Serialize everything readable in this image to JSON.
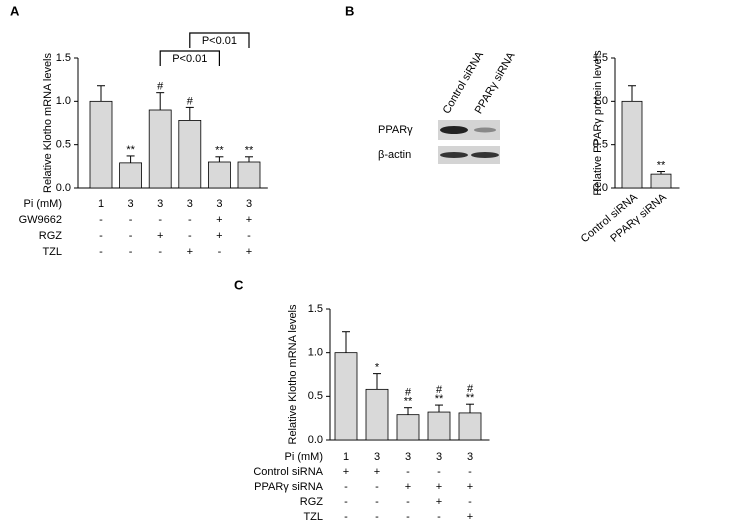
{
  "chart_data": [
    {
      "type": "bar",
      "panel": "A",
      "ylabel": "Relative Klotho mRNA levels",
      "values": [
        1.0,
        0.29,
        0.9,
        0.78,
        0.3,
        0.3
      ],
      "errors": [
        0.18,
        0.08,
        0.2,
        0.15,
        0.06,
        0.06
      ],
      "markers": [
        null,
        [
          "**"
        ],
        [
          "#"
        ],
        [
          "#"
        ],
        [
          "**"
        ],
        [
          "**"
        ]
      ],
      "color": "#d9d9d9",
      "ylim": [
        0,
        1.5
      ],
      "yticks": [
        {
          "value": 0,
          "label": "0.0"
        },
        0.5,
        {
          "value": 1,
          "label": "1.0"
        },
        1.5
      ],
      "condition_rows": [
        {
          "label": "Pi (mM)",
          "values": [
            "1",
            "3",
            "3",
            "3",
            "3",
            "3"
          ]
        },
        {
          "label": "GW9662",
          "values": [
            "-",
            "-",
            "-",
            "-",
            "+",
            "+"
          ]
        },
        {
          "label": "RGZ",
          "values": [
            "-",
            "-",
            "+",
            "-",
            "+",
            "-"
          ]
        },
        {
          "label": "TZL",
          "values": [
            "-",
            "-",
            "-",
            "+",
            "-",
            "+"
          ]
        }
      ],
      "brackets": [
        {
          "from": 2,
          "to": 4,
          "label": "P<0.01"
        },
        {
          "from": 3,
          "to": 5,
          "label": "P<0.01"
        }
      ]
    },
    {
      "type": "bar",
      "panel": "B",
      "ylabel": "Relative PPARγ protein levels",
      "categories": [
        "Control siRNA",
        "PPARγ siRNA"
      ],
      "values": [
        1.0,
        0.16
      ],
      "errors": [
        0.18,
        0.03
      ],
      "markers": [
        null,
        [
          "**"
        ]
      ],
      "color": "#d9d9d9",
      "ylim": [
        0,
        1.5
      ],
      "yticks": [
        {
          "value": 0,
          "label": "0.0"
        },
        0.5,
        {
          "value": 1,
          "label": "1.0"
        },
        1.5
      ],
      "blot": {
        "lanes": [
          "Control siRNA",
          "PPARγ siRNA"
        ],
        "rows": [
          "PPARγ",
          "β-actin"
        ]
      }
    },
    {
      "type": "bar",
      "panel": "C",
      "ylabel": "Relative Klotho mRNA levels",
      "values": [
        1.0,
        0.58,
        0.29,
        0.32,
        0.31
      ],
      "errors": [
        0.24,
        0.18,
        0.08,
        0.08,
        0.1
      ],
      "markers": [
        null,
        [
          "*"
        ],
        [
          "#",
          "**"
        ],
        [
          "#",
          "**"
        ],
        [
          "#",
          "**"
        ]
      ],
      "color": "#d9d9d9",
      "ylim": [
        0,
        1.5
      ],
      "yticks": [
        {
          "value": 0,
          "label": "0.0"
        },
        0.5,
        {
          "value": 1,
          "label": "1.0"
        },
        1.5
      ],
      "condition_rows": [
        {
          "label": "Pi (mM)",
          "values": [
            "1",
            "3",
            "3",
            "3",
            "3"
          ]
        },
        {
          "label": "Control siRNA",
          "values": [
            "+",
            "+",
            "-",
            "-",
            "-"
          ]
        },
        {
          "label": "PPARγ siRNA",
          "values": [
            "-",
            "-",
            "+",
            "+",
            "+"
          ]
        },
        {
          "label": "RGZ",
          "values": [
            "-",
            "-",
            "-",
            "+",
            "-"
          ]
        },
        {
          "label": "TZL",
          "values": [
            "-",
            "-",
            "-",
            "-",
            "+"
          ]
        }
      ]
    }
  ]
}
